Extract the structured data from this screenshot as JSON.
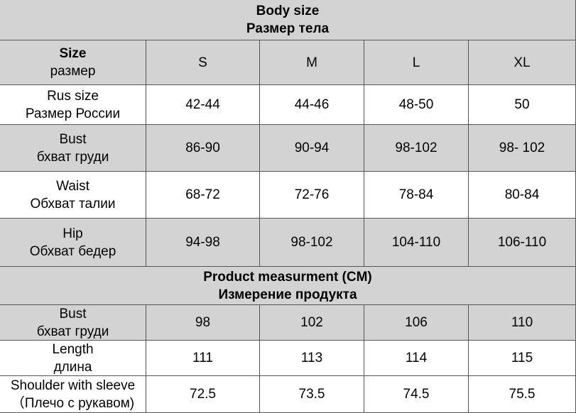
{
  "sections": [
    {
      "title": "Body size",
      "subtitle": "Размер тела",
      "rows": [
        {
          "label": "Size",
          "sublabel": "размер",
          "cells": [
            "S",
            "M",
            "L",
            "XL"
          ]
        },
        {
          "label": "Rus size",
          "sublabel": "Размер России",
          "cells": [
            "42-44",
            "44-46",
            "48-50",
            50
          ]
        },
        {
          "label": "Bust",
          "sublabel": "бхват груди",
          "cells": [
            "86-90",
            "90-94",
            "98-102",
            "98- 102"
          ]
        },
        {
          "label": "Waist",
          "sublabel": "Обхват талии",
          "cells": [
            "68-72",
            "72-76",
            "78-84",
            "80-84"
          ]
        },
        {
          "label": "Hip",
          "sublabel": "Обхват бедер",
          "cells": [
            "94-98",
            "98-102",
            "104-110",
            "106-110"
          ]
        }
      ]
    },
    {
      "title": "Product measurment (CM)",
      "subtitle": "Измерение продукта",
      "rows": [
        {
          "label": "Bust",
          "sublabel": "бхват груди",
          "cells": [
            98,
            102,
            106,
            110
          ]
        },
        {
          "label": "Length",
          "sublabel": "длина",
          "cells": [
            111,
            113,
            114,
            115
          ]
        },
        {
          "label": "Shoulder with sleeve",
          "sublabel": "（Плечо с рукавом)",
          "cells": [
            72.5,
            73.5,
            74.5,
            75.5
          ]
        }
      ]
    }
  ]
}
